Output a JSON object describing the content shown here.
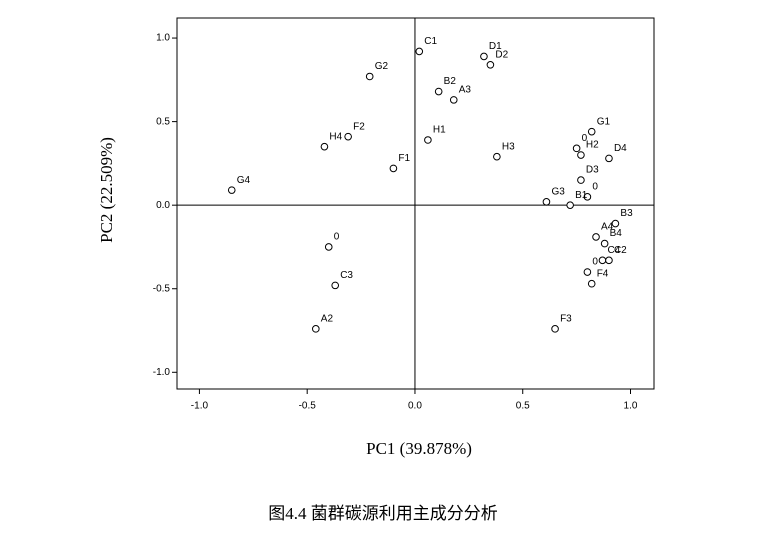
{
  "chart_data": {
    "type": "scatter",
    "xlabel": "PC1 (39.878%)",
    "ylabel": "PC2 (22.509%)",
    "caption": "图4.4  菌群碳源利用主成分分析",
    "point_labels": [
      "C1",
      "D1",
      "D2",
      "G2",
      "B2",
      "A3",
      "F2",
      "H4",
      "H1",
      "F1",
      "H3",
      "G1",
      "0",
      "H2",
      "D4",
      "D3",
      "0",
      "G3",
      "B1",
      "G4",
      "B3",
      "A4",
      "B4",
      "0",
      "C4",
      "C2",
      "0",
      "F4",
      "C3",
      "A2",
      "F3"
    ],
    "x": [
      0.02,
      0.32,
      0.35,
      -0.21,
      0.11,
      0.18,
      -0.31,
      -0.42,
      0.06,
      -0.1,
      0.38,
      0.82,
      0.75,
      0.77,
      0.9,
      0.77,
      0.8,
      0.61,
      0.72,
      -0.85,
      0.93,
      0.84,
      0.88,
      -0.4,
      0.87,
      0.9,
      0.8,
      0.82,
      -0.37,
      -0.46,
      0.65
    ],
    "values": [
      0.92,
      0.89,
      0.84,
      0.77,
      0.68,
      0.63,
      0.41,
      0.35,
      0.39,
      0.22,
      0.29,
      0.44,
      0.34,
      0.3,
      0.28,
      0.15,
      0.05,
      0.02,
      0.0,
      0.09,
      -0.11,
      -0.19,
      -0.23,
      -0.25,
      -0.33,
      -0.33,
      -0.4,
      -0.47,
      -0.48,
      -0.74,
      -0.74
    ],
    "color": "#000000",
    "xlim": [
      -1.104,
      1.109
    ],
    "ylim": [
      -1.1,
      1.12
    ],
    "xticks": [
      {
        "value": -1,
        "label": "-1.0"
      },
      -0.5,
      {
        "value": 0,
        "label": "0.0"
      },
      0.5,
      {
        "value": 1,
        "label": "1.0"
      }
    ],
    "yticks": [
      {
        "value": -1,
        "label": "-1.0"
      },
      -0.5,
      {
        "value": 0,
        "label": "0.0"
      },
      0.5,
      {
        "value": 1,
        "label": "1.0"
      }
    ],
    "zero_lines": true
  }
}
